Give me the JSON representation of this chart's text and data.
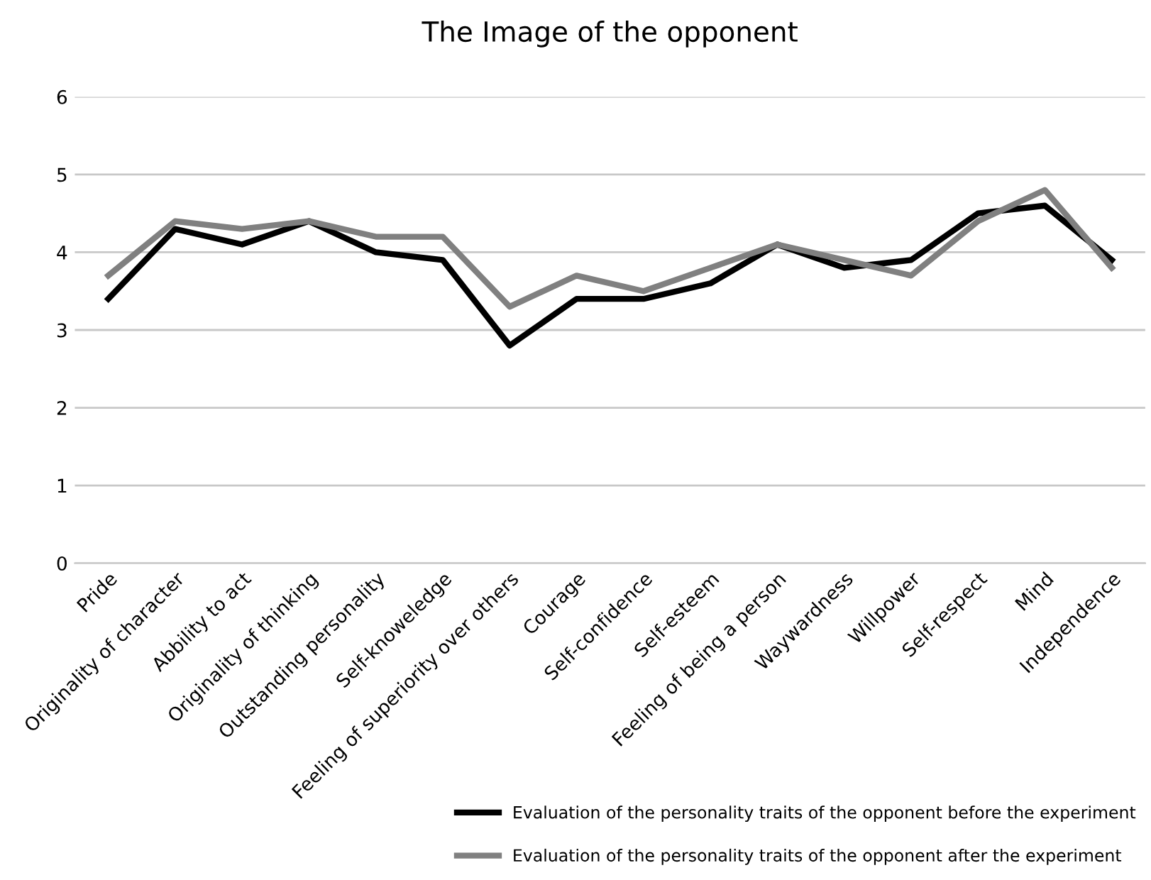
{
  "chart_data": {
    "type": "line",
    "title": "The Image of the opponent",
    "categories": [
      "Pride",
      "Originality of character",
      "Abbility to act",
      "Originality of thinking",
      "Outstanding personality",
      "Self-knoweledge",
      "Feeling of superiority over others",
      "Courage",
      "Self-confidence",
      "Self-esteem",
      "Feeling of being a person",
      "Waywardness",
      "Willpower",
      "Self-respect",
      "Mind",
      "Independence"
    ],
    "series": [
      {
        "name": "Evaluation of the personality traits of the opponent before the experiment",
        "color": "#000000",
        "values": [
          3.4,
          4.3,
          4.1,
          4.4,
          4.0,
          3.9,
          2.8,
          3.4,
          3.4,
          3.6,
          4.1,
          3.8,
          3.9,
          4.5,
          4.6,
          3.9
        ]
      },
      {
        "name": "Evaluation of the personality traits of the opponent after the experiment",
        "color": "#808080",
        "values": [
          3.7,
          4.4,
          4.3,
          4.4,
          4.2,
          4.2,
          3.3,
          3.7,
          3.5,
          3.8,
          4.1,
          3.9,
          3.7,
          4.4,
          4.8,
          3.8
        ]
      }
    ],
    "ylim": [
      0,
      6
    ],
    "yticks": [
      0,
      1,
      2,
      3,
      4,
      5,
      6
    ],
    "grid": "y",
    "legend": "bottom right",
    "marker": "none",
    "line_style": "solid"
  }
}
